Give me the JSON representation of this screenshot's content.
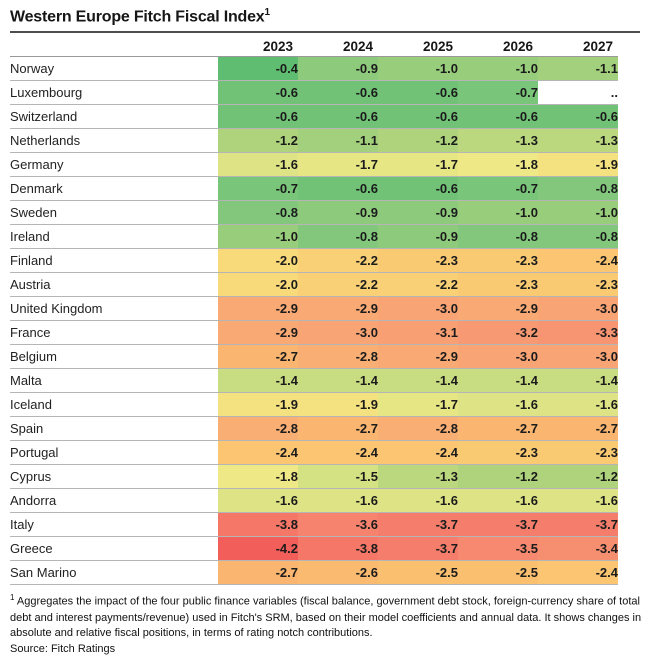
{
  "title": {
    "text": "Western Europe Fitch Fiscal Index",
    "superscript": "1"
  },
  "table": {
    "year_columns": [
      "2023",
      "2024",
      "2025",
      "2026",
      "2027"
    ],
    "missing_placeholder": "..",
    "rows": [
      {
        "country": "Norway",
        "values": [
          "-0.4",
          "-0.9",
          "-1.0",
          "-1.0",
          "-1.1"
        ]
      },
      {
        "country": "Luxembourg",
        "values": [
          "-0.6",
          "-0.6",
          "-0.6",
          "-0.7",
          ".."
        ]
      },
      {
        "country": "Switzerland",
        "values": [
          "-0.6",
          "-0.6",
          "-0.6",
          "-0.6",
          "-0.6"
        ]
      },
      {
        "country": "Netherlands",
        "values": [
          "-1.2",
          "-1.1",
          "-1.2",
          "-1.3",
          "-1.3"
        ]
      },
      {
        "country": "Germany",
        "values": [
          "-1.6",
          "-1.7",
          "-1.7",
          "-1.8",
          "-1.9"
        ]
      },
      {
        "country": "Denmark",
        "values": [
          "-0.7",
          "-0.6",
          "-0.6",
          "-0.7",
          "-0.8"
        ]
      },
      {
        "country": "Sweden",
        "values": [
          "-0.8",
          "-0.9",
          "-0.9",
          "-1.0",
          "-1.0"
        ]
      },
      {
        "country": "Ireland",
        "values": [
          "-1.0",
          "-0.8",
          "-0.9",
          "-0.8",
          "-0.8"
        ]
      },
      {
        "country": "Finland",
        "values": [
          "-2.0",
          "-2.2",
          "-2.3",
          "-2.3",
          "-2.4"
        ]
      },
      {
        "country": "Austria",
        "values": [
          "-2.0",
          "-2.2",
          "-2.2",
          "-2.3",
          "-2.3"
        ]
      },
      {
        "country": "United Kingdom",
        "values": [
          "-2.9",
          "-2.9",
          "-3.0",
          "-2.9",
          "-3.0"
        ]
      },
      {
        "country": "France",
        "values": [
          "-2.9",
          "-3.0",
          "-3.1",
          "-3.2",
          "-3.3"
        ]
      },
      {
        "country": "Belgium",
        "values": [
          "-2.7",
          "-2.8",
          "-2.9",
          "-3.0",
          "-3.0"
        ]
      },
      {
        "country": "Malta",
        "values": [
          "-1.4",
          "-1.4",
          "-1.4",
          "-1.4",
          "-1.4"
        ]
      },
      {
        "country": "Iceland",
        "values": [
          "-1.9",
          "-1.9",
          "-1.7",
          "-1.6",
          "-1.6"
        ]
      },
      {
        "country": "Spain",
        "values": [
          "-2.8",
          "-2.7",
          "-2.8",
          "-2.7",
          "-2.7"
        ]
      },
      {
        "country": "Portugal",
        "values": [
          "-2.4",
          "-2.4",
          "-2.4",
          "-2.3",
          "-2.3"
        ]
      },
      {
        "country": "Cyprus",
        "values": [
          "-1.8",
          "-1.5",
          "-1.3",
          "-1.2",
          "-1.2"
        ]
      },
      {
        "country": "Andorra",
        "values": [
          "-1.6",
          "-1.6",
          "-1.6",
          "-1.6",
          "-1.6"
        ]
      },
      {
        "country": "Italy",
        "values": [
          "-3.8",
          "-3.6",
          "-3.7",
          "-3.7",
          "-3.7"
        ]
      },
      {
        "country": "Greece",
        "values": [
          "-4.2",
          "-3.8",
          "-3.7",
          "-3.5",
          "-3.4"
        ]
      },
      {
        "country": "San Marino",
        "values": [
          "-2.7",
          "-2.6",
          "-2.5",
          "-2.5",
          "-2.4"
        ]
      }
    ]
  },
  "color_scale": {
    "stops": [
      [
        -4.2,
        "#f25f5b"
      ],
      [
        -3.6,
        "#f5836e"
      ],
      [
        -3.0,
        "#f8a475"
      ],
      [
        -2.5,
        "#fbc06f"
      ],
      [
        -2.0,
        "#f9da7a"
      ],
      [
        -1.8,
        "#efe886"
      ],
      [
        -1.5,
        "#d5e284"
      ],
      [
        -1.2,
        "#aed37c"
      ],
      [
        -0.8,
        "#82c77c"
      ],
      [
        -0.4,
        "#5fbd71"
      ]
    ],
    "missing_color": "#ffffff"
  },
  "footnote": {
    "marker": "1",
    "text": "Aggregates the impact of the four public finance variables (fiscal balance, government debt stock, foreign-currency share of total debt and interest payments/revenue) used in Fitch's SRM, based on their model coefficients and annual data.  It shows changes in absolute and relative fiscal positions, in terms of rating notch contributions.",
    "source": "Source: Fitch Ratings"
  },
  "chart_data": {
    "type": "heatmap",
    "title": "Western Europe Fitch Fiscal Index",
    "columns": [
      "2023",
      "2024",
      "2025",
      "2026",
      "2027"
    ],
    "rows": [
      "Norway",
      "Luxembourg",
      "Switzerland",
      "Netherlands",
      "Germany",
      "Denmark",
      "Sweden",
      "Ireland",
      "Finland",
      "Austria",
      "United Kingdom",
      "France",
      "Belgium",
      "Malta",
      "Iceland",
      "Spain",
      "Portugal",
      "Cyprus",
      "Andorra",
      "Italy",
      "Greece",
      "San Marino"
    ],
    "values": [
      [
        -0.4,
        -0.9,
        -1.0,
        -1.0,
        -1.1
      ],
      [
        -0.6,
        -0.6,
        -0.6,
        -0.7,
        null
      ],
      [
        -0.6,
        -0.6,
        -0.6,
        -0.6,
        -0.6
      ],
      [
        -1.2,
        -1.1,
        -1.2,
        -1.3,
        -1.3
      ],
      [
        -1.6,
        -1.7,
        -1.7,
        -1.8,
        -1.9
      ],
      [
        -0.7,
        -0.6,
        -0.6,
        -0.7,
        -0.8
      ],
      [
        -0.8,
        -0.9,
        -0.9,
        -1.0,
        -1.0
      ],
      [
        -1.0,
        -0.8,
        -0.9,
        -0.8,
        -0.8
      ],
      [
        -2.0,
        -2.2,
        -2.3,
        -2.3,
        -2.4
      ],
      [
        -2.0,
        -2.2,
        -2.2,
        -2.3,
        -2.3
      ],
      [
        -2.9,
        -2.9,
        -3.0,
        -2.9,
        -3.0
      ],
      [
        -2.9,
        -3.0,
        -3.1,
        -3.2,
        -3.3
      ],
      [
        -2.7,
        -2.8,
        -2.9,
        -3.0,
        -3.0
      ],
      [
        -1.4,
        -1.4,
        -1.4,
        -1.4,
        -1.4
      ],
      [
        -1.9,
        -1.9,
        -1.7,
        -1.6,
        -1.6
      ],
      [
        -2.8,
        -2.7,
        -2.8,
        -2.7,
        -2.7
      ],
      [
        -2.4,
        -2.4,
        -2.4,
        -2.3,
        -2.3
      ],
      [
        -1.8,
        -1.5,
        -1.3,
        -1.2,
        -1.2
      ],
      [
        -1.6,
        -1.6,
        -1.6,
        -1.6,
        -1.6
      ],
      [
        -3.8,
        -3.6,
        -3.7,
        -3.7,
        -3.7
      ],
      [
        -4.2,
        -3.8,
        -3.7,
        -3.5,
        -3.4
      ],
      [
        -2.7,
        -2.6,
        -2.5,
        -2.5,
        -2.4
      ]
    ],
    "missing_marker": "..",
    "value_range": [
      -4.2,
      -0.4
    ],
    "color_mapping": "red (most negative) through yellow to green (least negative)"
  }
}
